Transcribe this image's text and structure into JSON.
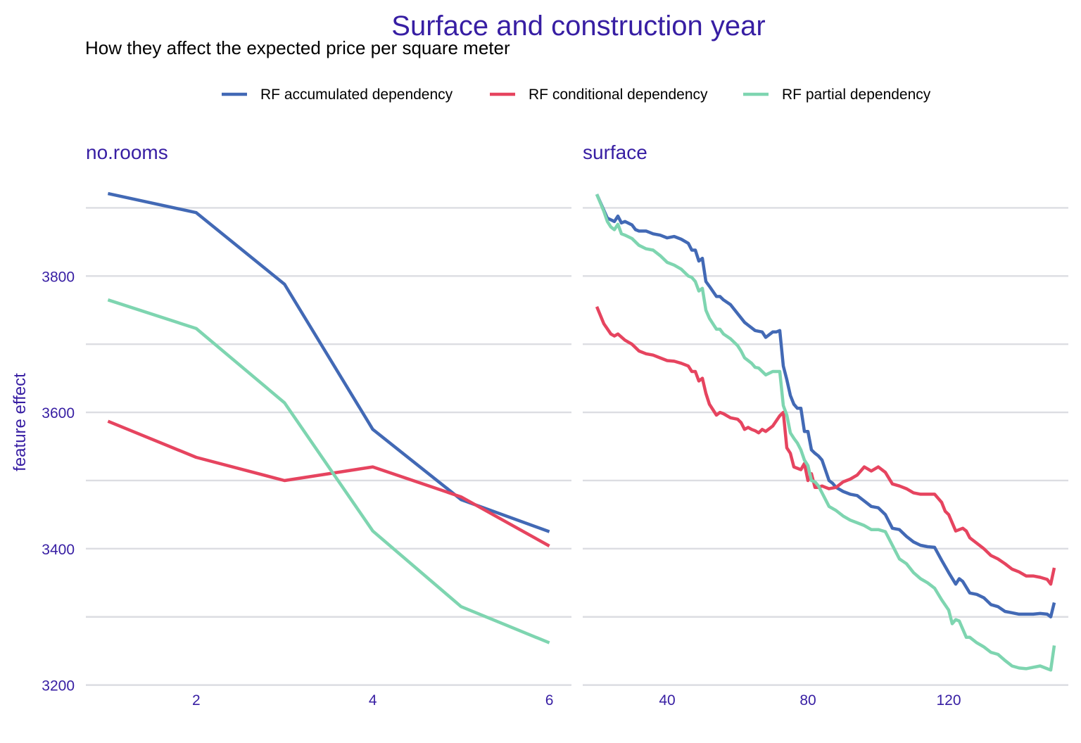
{
  "title": "Surface and construction year",
  "subtitle": "How they affect the expected price per square meter",
  "colors": {
    "text": "#371ea3",
    "grid": "#dcdde2",
    "accumulated": "#4269b5",
    "conditional": "#e6445f",
    "partial": "#7ed5b0"
  },
  "legend": [
    "RF accumulated dependency",
    "RF conditional dependency",
    "RF partial dependency"
  ],
  "chart_data": {
    "type": "line",
    "ylabel": "feature effect",
    "ylim": [
      3180,
      3950
    ],
    "yticks": [
      3200,
      3400,
      3600,
      3800
    ],
    "grid": true,
    "legend_position": "top",
    "panels": [
      {
        "name": "no.rooms",
        "xlim": [
          0.75,
          6.25
        ],
        "xticks": [
          2,
          4,
          6
        ],
        "series": [
          {
            "name": "RF accumulated dependency",
            "x": [
              1,
              2,
              3,
              4,
              5,
              6
            ],
            "y": [
              3921,
              3893,
              3788,
              3575,
              3472,
              3425
            ]
          },
          {
            "name": "RF conditional dependency",
            "x": [
              1,
              2,
              3,
              4,
              5,
              6
            ],
            "y": [
              3587,
              3534,
              3500,
              3520,
              3476,
              3404
            ]
          },
          {
            "name": "RF partial dependency",
            "x": [
              1,
              2,
              3,
              4,
              5,
              6
            ],
            "y": [
              3765,
              3723,
              3614,
              3426,
              3315,
              3262
            ]
          }
        ]
      },
      {
        "name": "surface",
        "xlim": [
          16,
          154
        ],
        "xticks": [
          40,
          80,
          120
        ],
        "series": [
          {
            "name": "RF accumulated dependency",
            "x": [
              20,
              23,
              25,
              26,
              27,
              28,
              30,
              31,
              32,
              34,
              35,
              36,
              38,
              40,
              42,
              44,
              46,
              47,
              48,
              49,
              50,
              51,
              52,
              54,
              55,
              56,
              58,
              60,
              62,
              63,
              65,
              67,
              68,
              70,
              71,
              72,
              73,
              74,
              75,
              76,
              77,
              78,
              79,
              80,
              81,
              82,
              83,
              84,
              85,
              86,
              87,
              88,
              90,
              92,
              94,
              96,
              98,
              100,
              102,
              104,
              106,
              108,
              110,
              112,
              114,
              116,
              118,
              120,
              122,
              123,
              124,
              126,
              128,
              130,
              132,
              134,
              136,
              138,
              140,
              142,
              144,
              146,
              148,
              149,
              150
            ],
            "y": [
              3920,
              3885,
              3880,
              3888,
              3878,
              3880,
              3875,
              3868,
              3866,
              3866,
              3864,
              3862,
              3860,
              3856,
              3858,
              3854,
              3848,
              3838,
              3838,
              3822,
              3826,
              3792,
              3785,
              3770,
              3770,
              3765,
              3758,
              3745,
              3732,
              3728,
              3720,
              3718,
              3710,
              3718,
              3718,
              3720,
              3668,
              3648,
              3625,
              3612,
              3606,
              3606,
              3572,
              3572,
              3545,
              3540,
              3536,
              3530,
              3515,
              3500,
              3496,
              3490,
              3484,
              3480,
              3478,
              3470,
              3462,
              3460,
              3450,
              3430,
              3428,
              3418,
              3410,
              3405,
              3403,
              3402,
              3383,
              3365,
              3348,
              3356,
              3352,
              3335,
              3333,
              3328,
              3318,
              3315,
              3308,
              3306,
              3304,
              3304,
              3304,
              3305,
              3304,
              3300,
              3321
            ]
          },
          {
            "name": "RF conditional dependency",
            "x": [
              20,
              22,
              24,
              25,
              26,
              28,
              30,
              32,
              34,
              36,
              38,
              40,
              42,
              44,
              46,
              47,
              48,
              49,
              50,
              51,
              52,
              54,
              55,
              56,
              58,
              60,
              61,
              62,
              63,
              64,
              65,
              66,
              67,
              68,
              70,
              72,
              73,
              74,
              75,
              76,
              78,
              79,
              80,
              81,
              82,
              83,
              84,
              85,
              86,
              88,
              90,
              92,
              94,
              96,
              98,
              100,
              102,
              104,
              106,
              108,
              110,
              112,
              114,
              116,
              117,
              118,
              119,
              120,
              122,
              124,
              125,
              126,
              128,
              130,
              132,
              134,
              136,
              138,
              140,
              142,
              144,
              146,
              148,
              149,
              150
            ],
            "y": [
              3755,
              3730,
              3715,
              3712,
              3715,
              3706,
              3700,
              3690,
              3686,
              3684,
              3680,
              3676,
              3675,
              3672,
              3668,
              3660,
              3660,
              3646,
              3650,
              3628,
              3612,
              3596,
              3600,
              3598,
              3592,
              3590,
              3585,
              3575,
              3578,
              3575,
              3573,
              3570,
              3575,
              3572,
              3580,
              3595,
              3600,
              3548,
              3540,
              3520,
              3516,
              3525,
              3500,
              3510,
              3490,
              3490,
              3492,
              3490,
              3488,
              3490,
              3498,
              3502,
              3508,
              3520,
              3514,
              3520,
              3512,
              3495,
              3492,
              3488,
              3482,
              3480,
              3480,
              3480,
              3474,
              3468,
              3455,
              3450,
              3426,
              3430,
              3426,
              3416,
              3408,
              3400,
              3390,
              3385,
              3378,
              3370,
              3366,
              3360,
              3360,
              3358,
              3355,
              3348,
              3372
            ]
          },
          {
            "name": "RF partial dependency",
            "x": [
              20,
              22,
              23,
              24,
              25,
              26,
              27,
              28,
              30,
              32,
              34,
              36,
              38,
              40,
              42,
              44,
              46,
              47,
              48,
              49,
              50,
              51,
              52,
              54,
              55,
              56,
              58,
              60,
              61,
              62,
              64,
              65,
              66,
              68,
              70,
              72,
              73,
              74,
              75,
              76,
              77,
              78,
              79,
              80,
              81,
              82,
              83,
              84,
              86,
              88,
              90,
              92,
              94,
              96,
              98,
              100,
              102,
              104,
              106,
              108,
              110,
              112,
              114,
              116,
              118,
              120,
              121,
              122,
              123,
              124,
              125,
              126,
              128,
              130,
              132,
              134,
              136,
              138,
              140,
              142,
              144,
              146,
              148,
              149,
              150
            ],
            "y": [
              3920,
              3895,
              3880,
              3872,
              3868,
              3876,
              3862,
              3860,
              3855,
              3845,
              3840,
              3838,
              3830,
              3820,
              3816,
              3810,
              3800,
              3798,
              3792,
              3778,
              3782,
              3750,
              3738,
              3722,
              3722,
              3715,
              3708,
              3698,
              3690,
              3680,
              3672,
              3666,
              3665,
              3655,
              3660,
              3660,
              3610,
              3596,
              3570,
              3562,
              3555,
              3545,
              3530,
              3522,
              3500,
              3498,
              3492,
              3482,
              3462,
              3456,
              3448,
              3442,
              3438,
              3434,
              3428,
              3428,
              3425,
              3405,
              3385,
              3378,
              3365,
              3356,
              3350,
              3342,
              3325,
              3310,
              3290,
              3296,
              3294,
              3282,
              3270,
              3270,
              3262,
              3256,
              3248,
              3245,
              3236,
              3228,
              3225,
              3224,
              3226,
              3228,
              3224,
              3222,
              3258
            ]
          }
        ]
      }
    ]
  }
}
